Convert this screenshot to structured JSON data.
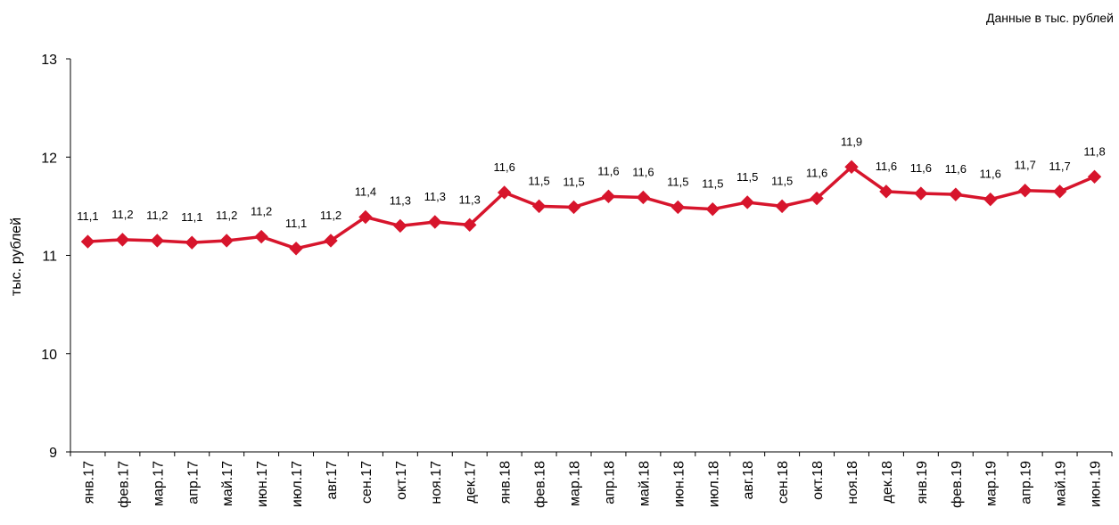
{
  "note": "Данные в тыс. рублей",
  "chart_data": {
    "type": "line",
    "title": "",
    "xlabel": "",
    "ylabel": "тыс. рублей",
    "ylim": [
      9,
      13
    ],
    "yticks": [
      "9",
      "10",
      "11",
      "12",
      "13"
    ],
    "grid": false,
    "legend": "none",
    "color": "#D7152C",
    "categories": [
      "янв.17",
      "фев.17",
      "мар.17",
      "апр.17",
      "май.17",
      "июн.17",
      "июл.17",
      "авг.17",
      "сен.17",
      "окт.17",
      "ноя.17",
      "дек.17",
      "янв.18",
      "фев.18",
      "мар.18",
      "апр.18",
      "май.18",
      "июн.18",
      "июл.18",
      "авг.18",
      "сен.18",
      "окт.18",
      "ноя.18",
      "дек.18",
      "янв.19",
      "фев.19",
      "мар.19",
      "апр.19",
      "май.19",
      "июн.19"
    ],
    "series": [
      {
        "values": [
          11.14,
          11.16,
          11.15,
          11.13,
          11.15,
          11.19,
          11.07,
          11.15,
          11.39,
          11.3,
          11.34,
          11.31,
          11.64,
          11.5,
          11.49,
          11.6,
          11.59,
          11.49,
          11.47,
          11.54,
          11.5,
          11.58,
          11.9,
          11.65,
          11.63,
          11.62,
          11.57,
          11.66,
          11.65,
          11.8
        ],
        "labels": [
          "11,1",
          "11,2",
          "11,2",
          "11,1",
          "11,2",
          "11,2",
          "11,1",
          "11,2",
          "11,4",
          "11,3",
          "11,3",
          "11,3",
          "11,6",
          "11,5",
          "11,5",
          "11,6",
          "11,6",
          "11,5",
          "11,5",
          "11,5",
          "11,5",
          "11,6",
          "11,9",
          "11,6",
          "11,6",
          "11,6",
          "11,6",
          "11,7",
          "11,7",
          "11,8"
        ]
      }
    ]
  }
}
